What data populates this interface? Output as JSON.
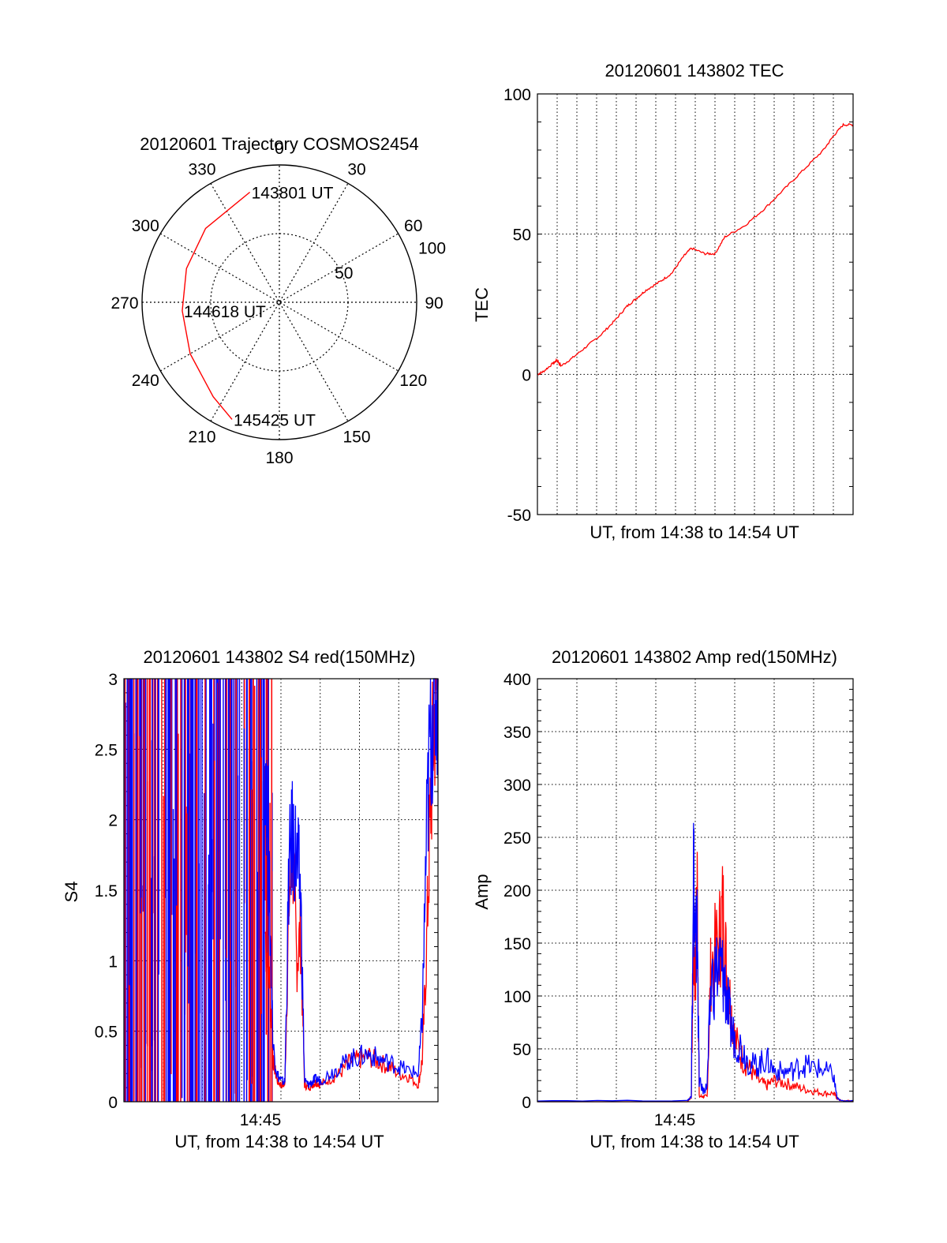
{
  "chart_data": [
    {
      "type": "polar",
      "title": "20120601 Trajectory COSMOS2454",
      "angle_labels": [
        "0",
        "30",
        "60",
        "90",
        "120",
        "150",
        "180",
        "210",
        "240",
        "270",
        "300",
        "330"
      ],
      "radial_labels": [
        "50",
        "100"
      ],
      "radial_values": [
        50,
        100
      ],
      "r_max": 100,
      "trajectory": {
        "points": [
          {
            "az": 345,
            "r": 83,
            "label": "143801 UT"
          },
          {
            "az": 315,
            "r": 76
          },
          {
            "az": 290,
            "r": 72
          },
          {
            "az": 265,
            "r": 71,
            "label": "144618 UT"
          },
          {
            "az": 240,
            "r": 75
          },
          {
            "az": 215,
            "r": 84
          },
          {
            "az": 202,
            "r": 92,
            "label": "145425 UT"
          }
        ],
        "color": "#ff0000"
      }
    },
    {
      "type": "line",
      "title": "20120601 143802 TEC",
      "xlabel": "UT, from 14:38 to 14:54 UT",
      "ylabel": "TEC",
      "ylim": [
        -50,
        100
      ],
      "yticks": [
        "-50",
        "0",
        "50",
        "100"
      ],
      "xlim": [
        0,
        16
      ],
      "grid": true,
      "series": [
        {
          "color": "#ff0000",
          "x": [
            0,
            0.3,
            0.8,
            1.0,
            1.2,
            1.8,
            2.5,
            3.2,
            3.9,
            4.5,
            5.0,
            5.5,
            6.2,
            6.8,
            7.4,
            7.8,
            8.5,
            9.0,
            9.5,
            10.5,
            11.5,
            12.5,
            13.5,
            14.5,
            15.0,
            15.5,
            16.0
          ],
          "y": [
            0,
            1,
            4,
            5,
            3,
            6,
            10,
            14,
            19,
            24,
            27,
            30,
            33,
            36,
            42,
            45,
            43,
            43,
            49,
            53,
            59,
            66,
            73,
            80,
            85,
            89,
            89
          ]
        }
      ]
    },
    {
      "type": "line",
      "title": "20120601 143802 S4 red(150MHz)",
      "xlabel": "UT, from 14:38 to 14:54 UT",
      "ylabel": "S4",
      "ylim": [
        0,
        3
      ],
      "yticks": [
        "0",
        "0.5",
        "1",
        "1.5",
        "2",
        "2.5",
        "3"
      ],
      "xticks": [
        "14:45"
      ],
      "xlim": [
        0,
        16
      ],
      "grid": true,
      "series": [
        {
          "color": "#ff0000",
          "x": [
            7.2,
            7.4,
            7.6,
            7.8,
            8.0,
            8.2,
            8.4,
            8.6,
            8.8,
            9.0,
            9.2,
            9.4,
            9.6,
            9.8,
            10.0,
            10.5,
            11.0,
            11.5,
            12.0,
            12.5,
            13.0,
            13.5,
            14.0,
            14.5,
            15.0,
            15.2,
            15.4,
            15.6,
            15.8,
            16.0
          ],
          "y": [
            1.2,
            0.9,
            0.3,
            0.15,
            0.12,
            0.12,
            1.4,
            1.8,
            1.0,
            1.2,
            0.12,
            0.1,
            0.12,
            0.14,
            0.12,
            0.16,
            0.2,
            0.28,
            0.3,
            0.32,
            0.28,
            0.25,
            0.2,
            0.18,
            0.12,
            0.3,
            1.0,
            2.0,
            2.7,
            3.0
          ]
        },
        {
          "color": "#0000ff",
          "x": [
            7.2,
            7.4,
            7.6,
            7.8,
            8.0,
            8.2,
            8.4,
            8.6,
            8.8,
            9.0,
            9.2,
            9.4,
            9.6,
            9.8,
            10.0,
            10.5,
            11.0,
            11.5,
            12.0,
            12.5,
            13.0,
            13.5,
            14.0,
            14.5,
            15.0,
            15.2,
            15.4,
            15.6,
            15.8,
            16.0
          ],
          "y": [
            2.6,
            1.5,
            0.4,
            0.2,
            0.15,
            0.14,
            1.6,
            1.9,
            1.7,
            1.5,
            0.15,
            0.12,
            0.14,
            0.16,
            0.15,
            0.2,
            0.25,
            0.3,
            0.32,
            0.34,
            0.3,
            0.28,
            0.25,
            0.22,
            0.2,
            0.6,
            1.8,
            2.6,
            2.9,
            3.0
          ]
        }
      ],
      "note_dense_region_x": [
        0,
        7.6
      ]
    },
    {
      "type": "line",
      "title": "20120601 143802 Amp red(150MHz)",
      "xlabel": "UT, from 14:38 to 14:54 UT",
      "ylabel": "Amp",
      "ylim": [
        0,
        400
      ],
      "yticks": [
        "0",
        "50",
        "100",
        "150",
        "200",
        "250",
        "300",
        "350",
        "400"
      ],
      "xticks": [
        "14:45"
      ],
      "xlim": [
        0,
        16
      ],
      "grid": true,
      "series": [
        {
          "color": "#ff0000",
          "x": [
            0,
            7.6,
            7.8,
            7.9,
            8.0,
            8.1,
            8.2,
            8.4,
            8.6,
            8.8,
            9.2,
            9.4,
            9.6,
            9.8,
            10.0,
            10.4,
            10.8,
            11.2,
            11.6,
            12.0,
            12.5,
            13.0,
            13.5,
            14.0,
            14.5,
            15.0,
            15.2,
            15.4,
            16.0
          ],
          "y": [
            0,
            0,
            5,
            150,
            120,
            200,
            5,
            5,
            5,
            130,
            150,
            180,
            120,
            90,
            60,
            40,
            30,
            20,
            15,
            20,
            18,
            15,
            12,
            10,
            8,
            8,
            3,
            1,
            1
          ]
        },
        {
          "color": "#0000ff",
          "x": [
            0,
            7.6,
            7.8,
            7.9,
            8.0,
            8.1,
            8.2,
            8.4,
            8.6,
            8.8,
            9.2,
            9.4,
            9.6,
            9.8,
            10.0,
            10.4,
            10.8,
            11.2,
            11.6,
            12.0,
            12.5,
            13.0,
            13.5,
            14.0,
            14.5,
            15.0,
            15.2,
            15.4,
            16.0
          ],
          "y": [
            1,
            1,
            5,
            235,
            140,
            160,
            20,
            10,
            15,
            110,
            130,
            120,
            100,
            70,
            60,
            50,
            35,
            35,
            40,
            30,
            28,
            30,
            35,
            32,
            30,
            25,
            3,
            1,
            1
          ]
        }
      ]
    }
  ]
}
